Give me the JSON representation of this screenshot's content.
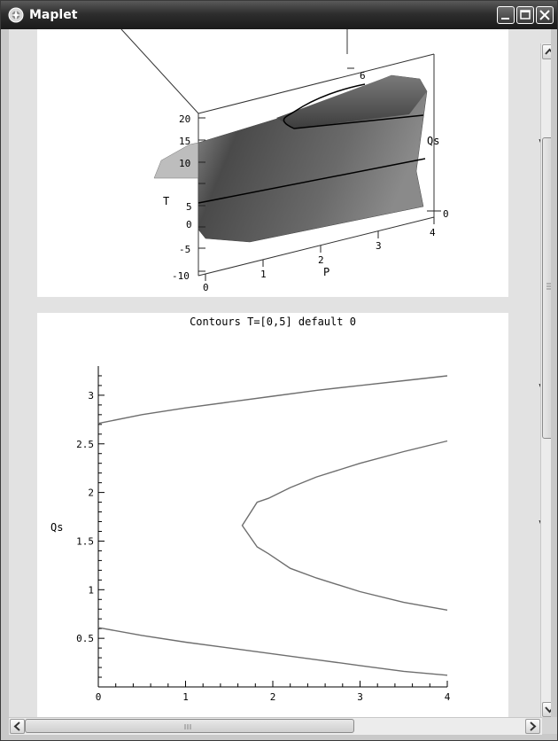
{
  "window": {
    "title": "Maplet"
  },
  "side_markers": [
    "v",
    "v",
    "v"
  ],
  "plot3d": {
    "axis_t_label": "T",
    "axis_p_label": "P",
    "axis_qs_label": "Qs",
    "t_ticks": [
      "20",
      "15",
      "10",
      "5",
      "0",
      "-5",
      "-10"
    ],
    "p_ticks": [
      "0",
      "1",
      "2",
      "3",
      "4"
    ],
    "qs_ticks": [
      "6",
      "0"
    ]
  },
  "chart_data": {
    "type": "line",
    "title": "Contours T=[0,5] default 0",
    "xlabel": "",
    "ylabel": "Qs",
    "xlim": [
      0,
      4
    ],
    "ylim": [
      0,
      3.3
    ],
    "x_ticks": [
      "0",
      "1",
      "2",
      "3",
      "4"
    ],
    "y_ticks": [
      "0.5",
      "1",
      "1.5",
      "2",
      "2.5",
      "3"
    ],
    "series": [
      {
        "x": [
          0,
          0.5,
          1,
          1.5,
          2,
          2.5,
          3,
          3.5,
          4
        ],
        "y": [
          2.71,
          2.8,
          2.87,
          2.93,
          2.99,
          3.05,
          3.1,
          3.15,
          3.2
        ]
      },
      {
        "x": [
          4,
          3.5,
          3,
          2.5,
          2.2,
          1.95,
          1.82,
          1.65,
          1.82,
          1.95,
          2.2,
          2.5,
          3,
          3.5,
          4
        ],
        "y": [
          2.53,
          2.42,
          2.3,
          2.16,
          2.05,
          1.94,
          1.9,
          1.66,
          1.44,
          1.37,
          1.22,
          1.12,
          0.98,
          0.87,
          0.79
        ]
      },
      {
        "x": [
          0,
          0.5,
          1,
          1.5,
          2,
          2.5,
          3,
          3.5,
          4
        ],
        "y": [
          0.61,
          0.53,
          0.46,
          0.4,
          0.34,
          0.28,
          0.22,
          0.16,
          0.12
        ]
      }
    ]
  }
}
